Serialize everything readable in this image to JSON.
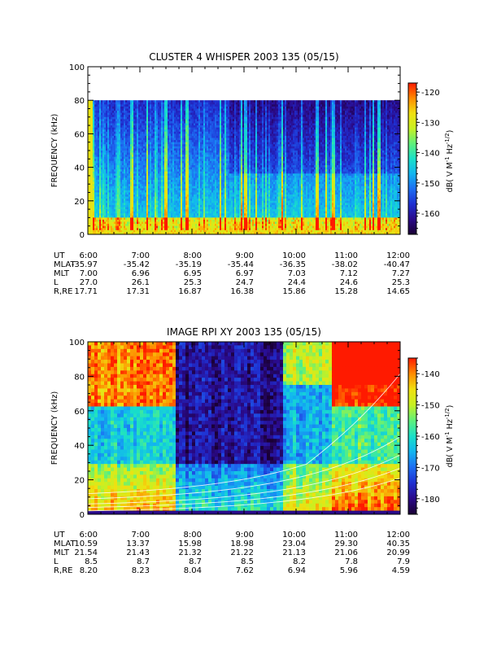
{
  "colors": {
    "colorscale": [
      "#1a0033",
      "#2a0a8a",
      "#1f2fd1",
      "#1d6df2",
      "#12b5f0",
      "#19e0c8",
      "#5ff07a",
      "#c8f022",
      "#f0e010",
      "#ff8a00",
      "#ff1a00"
    ],
    "axes": "#000000",
    "overlay_line": "#ffffff"
  },
  "chart_data": [
    {
      "type": "heatmap",
      "title": "CLUSTER 4 WHISPER 2003 135 (05/15)",
      "xlabel": "",
      "ylabel": "FREQUENCY (kHz)",
      "ylim": [
        0,
        100
      ],
      "y_ticks": [
        "0",
        "20",
        "40",
        "60",
        "80",
        "100"
      ],
      "data_max_frequency_khz": 80,
      "x_ticks": [
        "6:00",
        "7:00",
        "8:00",
        "9:00",
        "10:00",
        "11:00",
        "12:00"
      ],
      "colorbar": {
        "label": "dB( V M-1 Hz-1/2)",
        "label_parts": [
          "dB( V M",
          "-1",
          " Hz",
          "-1/2",
          ")"
        ],
        "ticks": [
          "-120",
          "-130",
          "-140",
          "-150",
          "-160"
        ],
        "range": [
          -167,
          -117
        ]
      },
      "ephemeris": {
        "rows": [
          {
            "label": "UT",
            "values": [
              "6:00",
              "7:00",
              "8:00",
              "9:00",
              "10:00",
              "11:00",
              "12:00"
            ]
          },
          {
            "label": "MLAT",
            "values": [
              "-35.97",
              "-35.42",
              "-35.19",
              "-35.44",
              "-36.35",
              "-38.02",
              "-40.47"
            ]
          },
          {
            "label": "MLT",
            "values": [
              "7.00",
              "6.96",
              "6.95",
              "6.97",
              "7.03",
              "7.12",
              "7.27"
            ]
          },
          {
            "label": "L",
            "values": [
              "27.0",
              "26.1",
              "25.3",
              "24.7",
              "24.4",
              "24.6",
              "25.3"
            ]
          },
          {
            "label": "R,RE",
            "values": [
              "17.71",
              "17.31",
              "16.87",
              "16.38",
              "15.86",
              "15.28",
              "14.65"
            ]
          }
        ]
      }
    },
    {
      "type": "heatmap",
      "title": "IMAGE RPI XY 2003 135 (05/15)",
      "xlabel": "",
      "ylabel": "FREQUENCY (kHz)",
      "ylim": [
        0,
        100
      ],
      "y_ticks": [
        "0",
        "20",
        "40",
        "60",
        "80",
        "100"
      ],
      "x_ticks": [
        "6:00",
        "7:00",
        "8:00",
        "9:00",
        "10:00",
        "11:00",
        "12:00"
      ],
      "colorbar": {
        "label": "dB( V M-1 Hz-1/2)",
        "label_parts": [
          "dB( V M",
          "-1",
          " Hz",
          "-1/2",
          ")"
        ],
        "ticks": [
          "-140",
          "-150",
          "-160",
          "-170",
          "-180"
        ],
        "range": [
          -185,
          -135
        ]
      },
      "overlay_curves": "white frequency traces rising toward 12:00",
      "ephemeris": {
        "rows": [
          {
            "label": "UT",
            "values": [
              "6:00",
              "7:00",
              "8:00",
              "9:00",
              "10:00",
              "11:00",
              "12:00"
            ]
          },
          {
            "label": "MLAT",
            "values": [
              "10.59",
              "13.37",
              "15.98",
              "18.98",
              "23.04",
              "29.30",
              "40.35"
            ]
          },
          {
            "label": "MLT",
            "values": [
              "21.54",
              "21.43",
              "21.32",
              "21.22",
              "21.13",
              "21.06",
              "20.99"
            ]
          },
          {
            "label": "L",
            "values": [
              "8.5",
              "8.7",
              "8.7",
              "8.5",
              "8.2",
              "7.8",
              "7.9"
            ]
          },
          {
            "label": "R,RE",
            "values": [
              "8.20",
              "8.23",
              "8.04",
              "7.62",
              "6.94",
              "5.96",
              "4.59"
            ]
          }
        ]
      }
    }
  ]
}
